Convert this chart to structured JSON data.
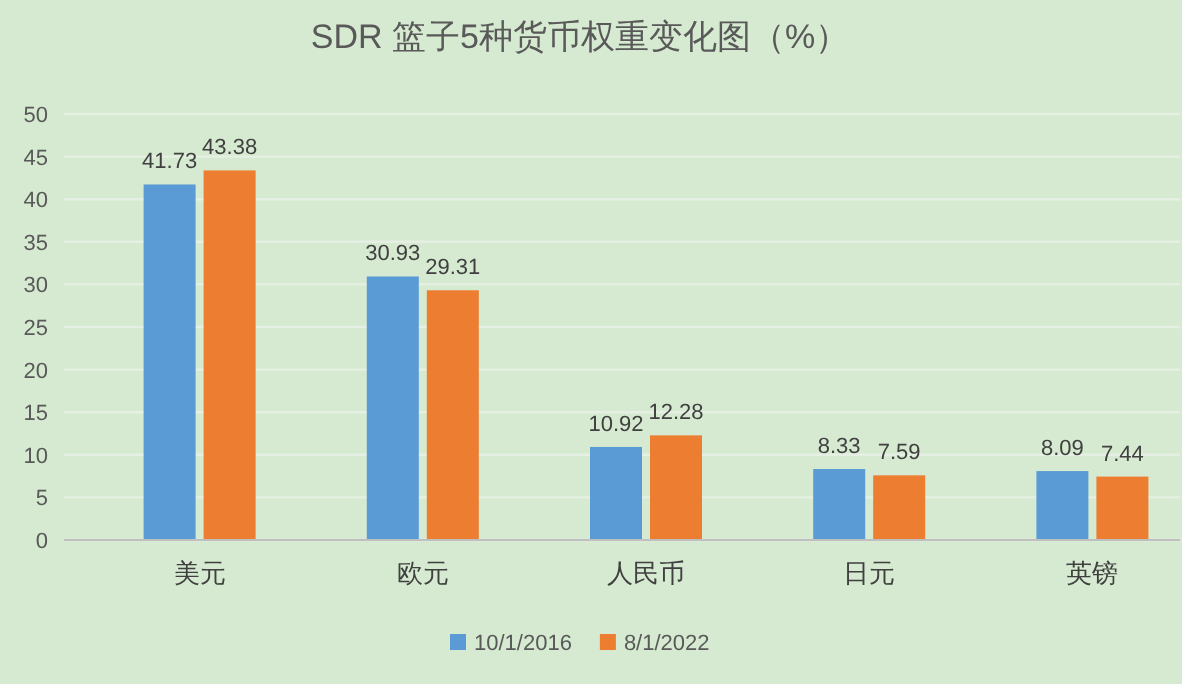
{
  "chart_data": {
    "type": "bar",
    "title": "SDR 篮子5种货币权重变化图（%）",
    "categories": [
      "美元",
      "欧元",
      "人民币",
      "日元",
      "英镑"
    ],
    "series": [
      {
        "name": "10/1/2016",
        "color": "#5b9bd5",
        "values": [
          41.73,
          30.93,
          10.92,
          8.33,
          8.09
        ]
      },
      {
        "name": "8/1/2022",
        "color": "#ed7d31",
        "values": [
          43.38,
          29.31,
          12.28,
          7.59,
          7.44
        ]
      }
    ],
    "ylim": [
      0,
      50
    ],
    "yticks": [
      0,
      5,
      10,
      15,
      20,
      25,
      30,
      35,
      40,
      45,
      50
    ],
    "grid": "y",
    "legend": "bottom",
    "data_labels": true
  }
}
